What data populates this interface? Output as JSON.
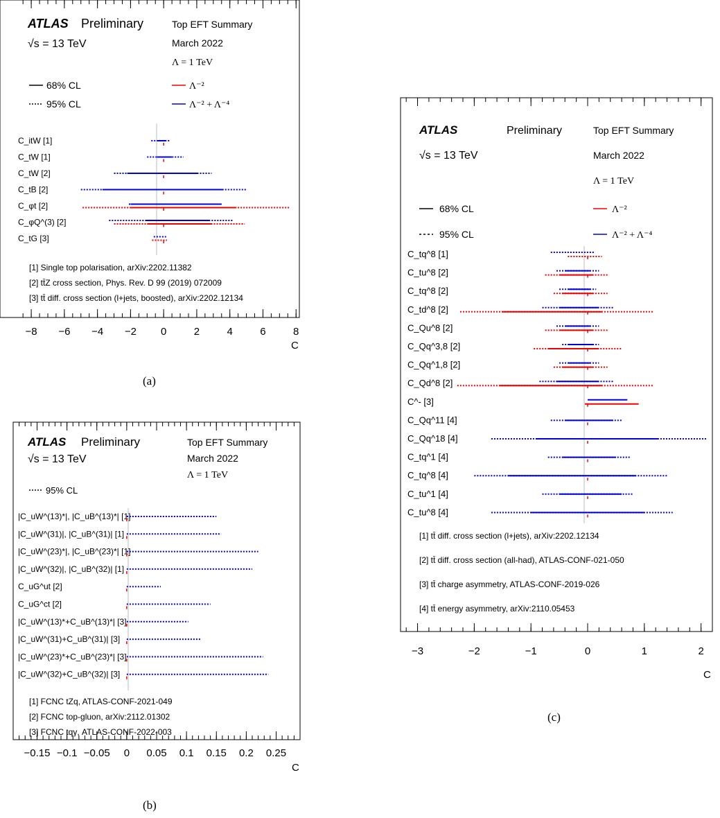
{
  "panels": [
    {
      "caption": "(a)",
      "header": {
        "atlas": "ATLAS",
        "preliminary": "Preliminary",
        "energy": "√s = 13 TeV",
        "summary": "Top EFT Summary",
        "date": "March 2022",
        "lambda": "Λ = 1 TeV"
      },
      "legend": {
        "solid": "68% CL",
        "dotted": "95% CL",
        "red": "Λ⁻²",
        "blue": "Λ⁻² + Λ⁻⁴"
      },
      "references": [
        "[1] Single top polarisation, arXiv:2202.11382",
        "[2] tt̄Z cross section, Phys. Rev. D 99 (2019) 072009",
        "[3] tt̄ diff. cross section (l+jets, boosted), arXiv:2202.12134"
      ],
      "xlabel": "C",
      "xticks": [
        "−8",
        "−6",
        "−4",
        "−2",
        "0",
        "2",
        "4",
        "6",
        "8"
      ]
    },
    {
      "caption": "(b)",
      "header": {
        "atlas": "ATLAS",
        "preliminary": "Preliminary",
        "energy": "√s = 13 TeV",
        "summary": "Top EFT Summary",
        "date": "March 2022",
        "lambda": "Λ = 1 TeV"
      },
      "legend": {
        "dotted": "95% CL"
      },
      "references": [
        "[1] FCNC tZq, ATLAS-CONF-2021-049",
        "[2] FCNC top-gluon, arXiv:2112.01302",
        "[3] FCNC tqγ, ATLAS-CONF-2022-003"
      ],
      "xlabel": "C",
      "xticks": [
        "−0.15",
        "−0.1",
        "−0.05",
        "0",
        "0.05",
        "0.1",
        "0.15",
        "0.2",
        "0.25"
      ]
    },
    {
      "caption": "(c)",
      "header": {
        "atlas": "ATLAS",
        "preliminary": "Preliminary",
        "energy": "√s = 13 TeV",
        "summary": "Top EFT Summary",
        "date": "March 2022",
        "lambda": "Λ = 1 TeV"
      },
      "legend": {
        "solid": "68% CL",
        "dotted": "95% CL",
        "red": "Λ⁻²",
        "blue": "Λ⁻² + Λ⁻⁴"
      },
      "references": [
        "[1] tt̄ diff. cross section (l+jets), arXiv:2202.12134",
        "[2] tt̄ diff. cross section (all-had), ATLAS-CONF-021-050",
        "[3] tt̄ charge asymmetry, ATLAS-CONF-2019-026",
        "[4] tt̄ energy asymmetry, arXiv:2110.05453"
      ],
      "xlabel": "C",
      "xticks": [
        "−3",
        "−2",
        "−1",
        "0",
        "1",
        "2"
      ]
    }
  ],
  "chart_data": [
    {
      "type": "interval",
      "colors": {
        "red": "#ee0000",
        "blue": "#0000dd"
      },
      "xlim": [
        -8,
        8
      ],
      "rows": [
        {
          "label": "C_itW",
          "ref": "[1]",
          "blue": {
            "cl95": [
              -0.75,
              0.35
            ],
            "cl68": [
              -0.4,
              0.1
            ]
          }
        },
        {
          "label": "C_tW",
          "ref": "[1]",
          "blue": {
            "cl95": [
              -1.0,
              1.2
            ],
            "cl68": [
              -0.4,
              0.5
            ]
          }
        },
        {
          "label": "C_tW",
          "ref": "[2]",
          "blue": {
            "cl95": [
              -3.0,
              2.9
            ],
            "cl68": [
              -2.2,
              2.1
            ]
          }
        },
        {
          "label": "C_tB",
          "ref": "[2]",
          "blue": {
            "cl95": [
              -5.0,
              5.0
            ],
            "cl68": [
              -3.7,
              3.6
            ]
          }
        },
        {
          "label": "C_φt",
          "ref": "[2]",
          "red": {
            "cl95": [
              -4.9,
              7.6
            ],
            "cl68": [
              -2.0,
              4.4
            ]
          },
          "blue": {
            "cl95": [
              -2.1,
              3.5
            ],
            "cl68": [
              -2.0,
              3.5
            ]
          }
        },
        {
          "label": "C_φQ^(3)",
          "ref": "[2]",
          "red": {
            "cl95": [
              -3.0,
              4.9
            ],
            "cl68": [
              -1.0,
              2.9
            ]
          },
          "blue": {
            "cl95": [
              -3.3,
              4.2
            ],
            "cl68": [
              -1.1,
              2.8
            ]
          }
        },
        {
          "label": "C_tG",
          "ref": "[3]",
          "red": {
            "cl95": [
              -0.7,
              0.2
            ]
          },
          "blue": {
            "cl95": [
              -0.6,
              0.15
            ]
          }
        }
      ]
    },
    {
      "type": "interval",
      "colors": {
        "red": "#ee0000",
        "blue": "#0000dd"
      },
      "xlim": [
        -0.2,
        0.28
      ],
      "rows": [
        {
          "label": "|C_uW^(13)*|, |C_uB^(13)*|",
          "ref": "[1]",
          "blue": {
            "cl95": [
              0,
              0.15
            ]
          }
        },
        {
          "label": "|C_uW^(31)|, |C_uB^(31)|",
          "ref": "[1]",
          "blue": {
            "cl95": [
              0,
              0.158
            ]
          }
        },
        {
          "label": "|C_uW^(23)*|, |C_uB^(23)*|",
          "ref": "[1]",
          "blue": {
            "cl95": [
              0,
              0.22
            ]
          }
        },
        {
          "label": "|C_uW^(32)|, |C_uB^(32)|",
          "ref": "[1]",
          "blue": {
            "cl95": [
              0,
              0.21
            ]
          }
        },
        {
          "label": "C_uG^ut",
          "ref": "[2]",
          "blue": {
            "cl95": [
              0,
              0.057
            ]
          }
        },
        {
          "label": "C_uG^ct",
          "ref": "[2]",
          "blue": {
            "cl95": [
              0,
              0.14
            ]
          }
        },
        {
          "label": "|C_uW^(13)*+C_uB^(13)*|",
          "ref": "[3]",
          "blue": {
            "cl95": [
              0,
              0.103
            ]
          }
        },
        {
          "label": "|C_uW^(31)+C_uB^(31)|",
          "ref": "[3]",
          "blue": {
            "cl95": [
              0,
              0.123
            ]
          }
        },
        {
          "label": "|C_uW^(23)*+C_uB^(23)*|",
          "ref": "[3]",
          "blue": {
            "cl95": [
              0,
              0.228
            ]
          }
        },
        {
          "label": "|C_uW^(32)+C_uB^(32)|",
          "ref": "[3]",
          "blue": {
            "cl95": [
              0,
              0.237
            ]
          }
        }
      ]
    },
    {
      "type": "interval",
      "colors": {
        "red": "#ee0000",
        "blue": "#0000dd"
      },
      "xlim": [
        -3,
        2.2
      ],
      "rows": [
        {
          "label": "C_tq^8",
          "ref": "[1]",
          "red": {
            "cl95": [
              -0.35,
              0.25
            ]
          },
          "blue": {
            "cl95": [
              -0.65,
              0.12
            ]
          }
        },
        {
          "label": "C_tu^8",
          "ref": "[2]",
          "red": {
            "cl95": [
              -0.75,
              0.35
            ],
            "cl68": [
              -0.5,
              0.1
            ]
          },
          "blue": {
            "cl95": [
              -0.55,
              0.2
            ],
            "cl68": [
              -0.4,
              0.05
            ]
          }
        },
        {
          "label": "C_tq^8",
          "ref": "[2]",
          "red": {
            "cl95": [
              -0.6,
              0.35
            ],
            "cl68": [
              -0.45,
              0.1
            ]
          },
          "blue": {
            "cl95": [
              -0.5,
              0.15
            ],
            "cl68": [
              -0.35,
              0.05
            ]
          }
        },
        {
          "label": "C_td^8",
          "ref": "[2]",
          "red": {
            "cl95": [
              -2.25,
              1.15
            ],
            "cl68": [
              -1.5,
              0.25
            ]
          },
          "blue": {
            "cl95": [
              -0.8,
              0.45
            ],
            "cl68": [
              -0.5,
              0.2
            ]
          }
        },
        {
          "label": "C_Qu^8",
          "ref": "[2]",
          "red": {
            "cl95": [
              -0.75,
              0.35
            ],
            "cl68": [
              -0.5,
              0.1
            ]
          },
          "blue": {
            "cl95": [
              -0.55,
              0.2
            ],
            "cl68": [
              -0.4,
              0.05
            ]
          }
        },
        {
          "label": "C_Qq^3,8",
          "ref": "[2]",
          "red": {
            "cl95": [
              -0.95,
              0.6
            ],
            "cl68": [
              -0.7,
              0.2
            ]
          },
          "blue": {
            "cl95": [
              -0.45,
              0.2
            ],
            "cl68": [
              -0.35,
              0.1
            ]
          }
        },
        {
          "label": "C_Qq^1,8",
          "ref": "[2]",
          "red": {
            "cl95": [
              -0.6,
              0.35
            ],
            "cl68": [
              -0.45,
              0.1
            ]
          },
          "blue": {
            "cl95": [
              -0.5,
              0.2
            ],
            "cl68": [
              -0.35,
              0.05
            ]
          }
        },
        {
          "label": "C_Qd^8",
          "ref": "[2]",
          "red": {
            "cl95": [
              -2.3,
              1.15
            ],
            "cl68": [
              -1.55,
              0.25
            ]
          },
          "blue": {
            "cl95": [
              -0.85,
              0.45
            ],
            "cl68": [
              -0.55,
              0.2
            ]
          }
        },
        {
          "label": "C^-",
          "ref": "[3]",
          "red": {
            "cl68": [
              -0.05,
              0.9
            ]
          },
          "blue": {
            "cl68": [
              0.0,
              0.7
            ]
          }
        },
        {
          "label": "C_Qq^11",
          "ref": "[4]",
          "blue": {
            "cl95": [
              -0.65,
              0.6
            ],
            "cl68": [
              -0.4,
              0.45
            ]
          }
        },
        {
          "label": "C_Qq^18",
          "ref": "[4]",
          "blue": {
            "cl95": [
              -1.7,
              2.1
            ],
            "cl68": [
              -0.9,
              1.25
            ]
          }
        },
        {
          "label": "C_tq^1",
          "ref": "[4]",
          "blue": {
            "cl95": [
              -0.7,
              0.75
            ],
            "cl68": [
              -0.45,
              0.5
            ]
          }
        },
        {
          "label": "C_tq^8",
          "ref": "[4]",
          "blue": {
            "cl95": [
              -2.0,
              1.4
            ],
            "cl68": [
              -1.4,
              0.85
            ]
          }
        },
        {
          "label": "C_tu^1",
          "ref": "[4]",
          "blue": {
            "cl95": [
              -0.8,
              0.8
            ],
            "cl68": [
              -0.5,
              0.6
            ]
          }
        },
        {
          "label": "C_tu^8",
          "ref": "[4]",
          "blue": {
            "cl95": [
              -1.7,
              1.5
            ],
            "cl68": [
              -1.0,
              1.0
            ]
          }
        }
      ]
    }
  ]
}
